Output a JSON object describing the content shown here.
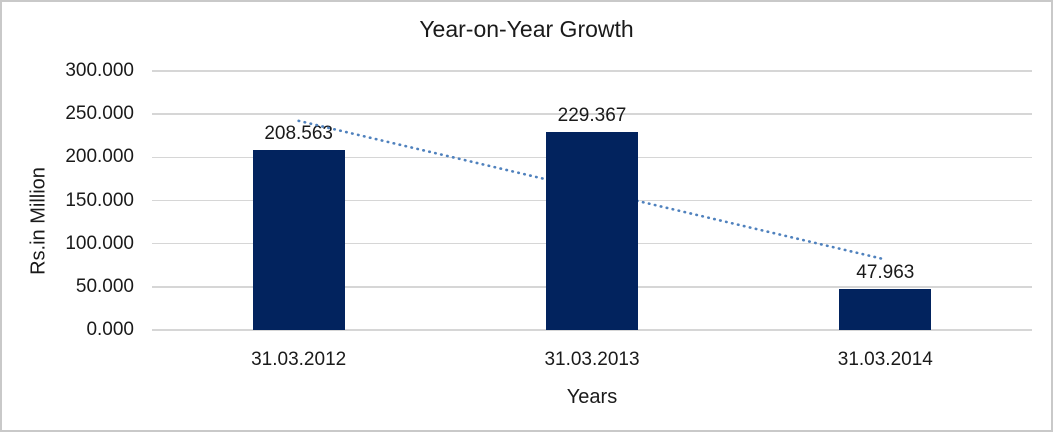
{
  "chart_data": {
    "type": "bar",
    "title": "Year-on-Year Growth",
    "xlabel": "Years",
    "ylabel": "Rs.in Million",
    "categories": [
      "31.03.2012",
      "31.03.2013",
      "31.03.2014"
    ],
    "values": [
      208.563,
      229.367,
      47.963
    ],
    "data_labels": [
      "208.563",
      "229.367",
      "47.963"
    ],
    "ylim": [
      0,
      300
    ],
    "ytick_labels": [
      "300.000",
      "250.000",
      "200.000",
      "150.000",
      "100.000",
      "50.000",
      "0.000"
    ],
    "ytick_values": [
      300,
      250,
      200,
      150,
      100,
      50,
      0
    ],
    "grid": true,
    "legend": false,
    "trendline": {
      "type": "linear",
      "style": "dotted",
      "start_value": 242.264,
      "end_value": 81.664,
      "color": "#4f81bd"
    },
    "colors": {
      "bar": "#02235e",
      "gridline": "#d6d6d6",
      "text": "#1a1a1a",
      "frame_border": "#c9c9c9",
      "background": "#ffffff"
    }
  }
}
